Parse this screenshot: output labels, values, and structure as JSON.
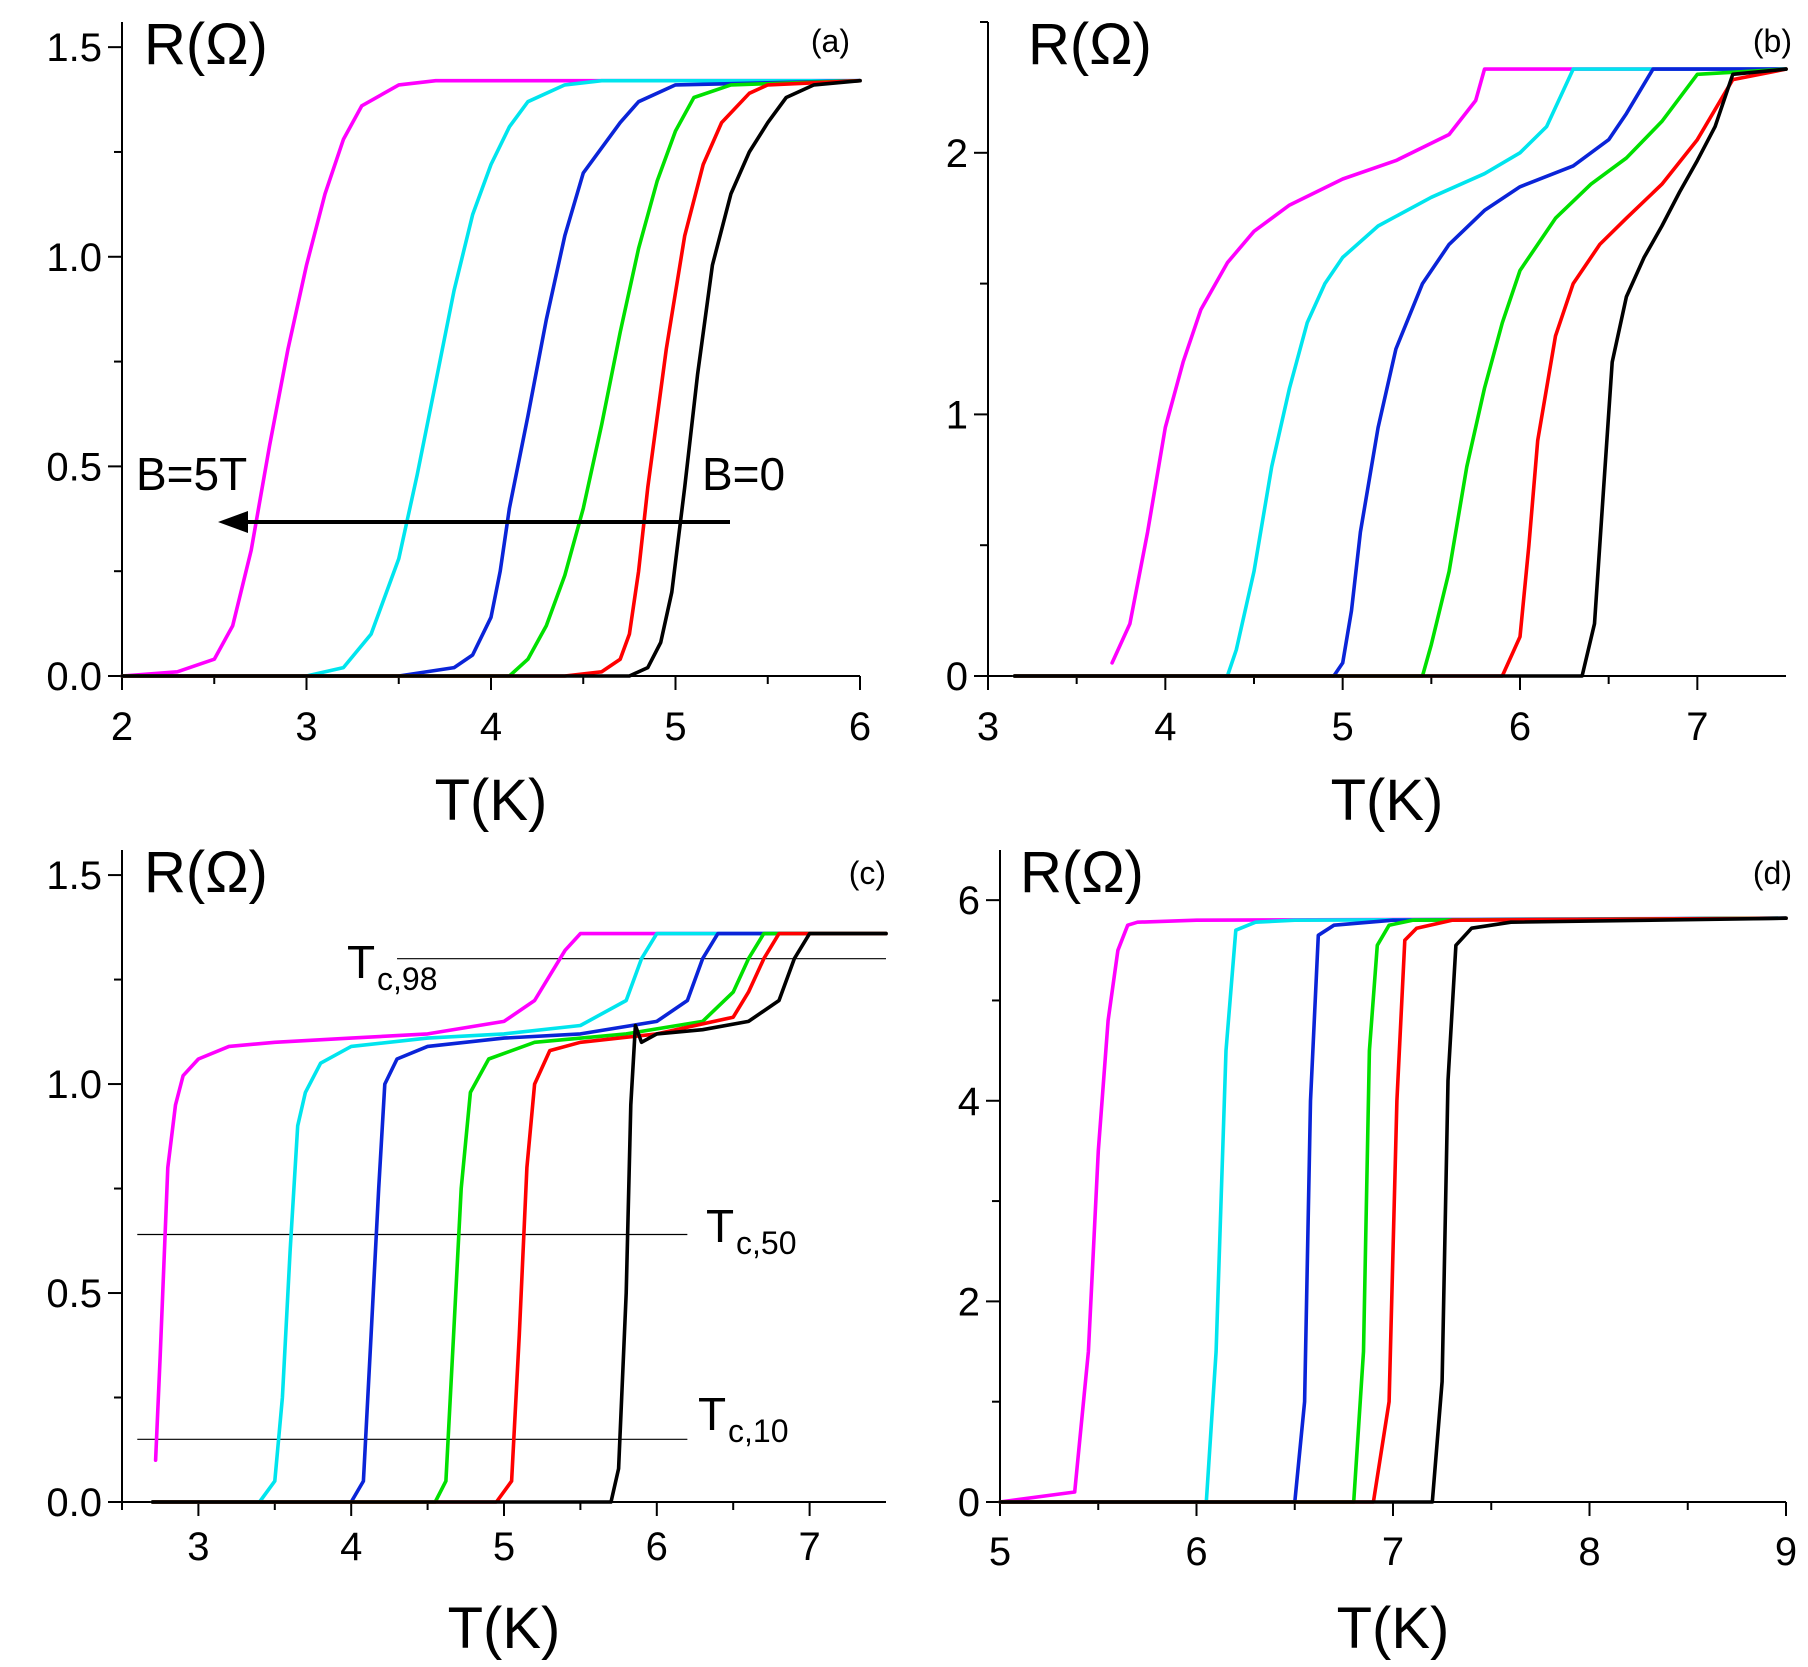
{
  "figure": {
    "series_colors": [
      "#ff00ff",
      "#00e5ee",
      "#0a24d8",
      "#00e000",
      "#ff0000",
      "#000000"
    ]
  },
  "chart_data": [
    {
      "id": "a",
      "type": "line",
      "panel_label": "(a)",
      "ylabel": "R(Ω)",
      "xlabel": "T(K)",
      "xlim": [
        2,
        6
      ],
      "ylim": [
        0,
        1.56
      ],
      "xticks": [
        2,
        3,
        4,
        5,
        6
      ],
      "xtick_labels": [
        "2",
        "3",
        "4",
        "5",
        "6"
      ],
      "yticks": [
        0,
        0.5,
        1.0,
        1.5
      ],
      "ytick_labels": [
        "0.0",
        "0.5",
        "1.0",
        "1.5"
      ],
      "annotations": {
        "left": "B=5T",
        "right": "B=0"
      },
      "series": [
        {
          "name": "magenta",
          "x": [
            2.0,
            2.3,
            2.5,
            2.6,
            2.7,
            2.8,
            2.9,
            3.0,
            3.1,
            3.2,
            3.3,
            3.5,
            3.7,
            4.0,
            4.5,
            6.0
          ],
          "y": [
            0,
            0.01,
            0.04,
            0.12,
            0.3,
            0.55,
            0.78,
            0.98,
            1.15,
            1.28,
            1.36,
            1.41,
            1.42,
            1.42,
            1.42,
            1.42
          ]
        },
        {
          "name": "cyan",
          "x": [
            2.0,
            3.0,
            3.2,
            3.35,
            3.5,
            3.6,
            3.7,
            3.8,
            3.9,
            4.0,
            4.1,
            4.2,
            4.4,
            4.6,
            6.0
          ],
          "y": [
            0,
            0,
            0.02,
            0.1,
            0.28,
            0.48,
            0.7,
            0.92,
            1.1,
            1.22,
            1.31,
            1.37,
            1.41,
            1.42,
            1.42
          ]
        },
        {
          "name": "blue",
          "x": [
            2.0,
            3.5,
            3.8,
            3.9,
            4.0,
            4.05,
            4.1,
            4.2,
            4.3,
            4.4,
            4.5,
            4.7,
            4.8,
            5.0,
            6.0
          ],
          "y": [
            0,
            0,
            0.02,
            0.05,
            0.14,
            0.25,
            0.4,
            0.62,
            0.85,
            1.05,
            1.2,
            1.32,
            1.37,
            1.41,
            1.42
          ]
        },
        {
          "name": "green",
          "x": [
            2.0,
            4.1,
            4.2,
            4.3,
            4.4,
            4.5,
            4.6,
            4.7,
            4.8,
            4.9,
            5.0,
            5.1,
            5.3,
            6.0
          ],
          "y": [
            0,
            0,
            0.04,
            0.12,
            0.24,
            0.4,
            0.6,
            0.82,
            1.02,
            1.18,
            1.3,
            1.38,
            1.41,
            1.42
          ]
        },
        {
          "name": "red",
          "x": [
            2.0,
            4.4,
            4.6,
            4.7,
            4.75,
            4.8,
            4.85,
            4.95,
            5.05,
            5.15,
            5.25,
            5.4,
            5.5,
            6.0
          ],
          "y": [
            0,
            0,
            0.01,
            0.04,
            0.1,
            0.25,
            0.45,
            0.78,
            1.05,
            1.22,
            1.32,
            1.39,
            1.41,
            1.42
          ]
        },
        {
          "name": "black",
          "x": [
            2.0,
            4.75,
            4.85,
            4.92,
            4.98,
            5.05,
            5.12,
            5.2,
            5.3,
            5.4,
            5.5,
            5.6,
            5.75,
            6.0
          ],
          "y": [
            0,
            0,
            0.02,
            0.08,
            0.2,
            0.45,
            0.72,
            0.98,
            1.15,
            1.25,
            1.32,
            1.38,
            1.41,
            1.42
          ]
        }
      ]
    },
    {
      "id": "b",
      "type": "line",
      "panel_label": "(b)",
      "ylabel": "R(Ω)",
      "xlabel": "T(K)",
      "xlim": [
        3,
        7.5
      ],
      "ylim": [
        0,
        2.5
      ],
      "xticks": [
        3,
        4,
        5,
        6,
        7
      ],
      "xtick_labels": [
        "3",
        "4",
        "5",
        "6",
        "7"
      ],
      "yticks": [
        0,
        1,
        2
      ],
      "ytick_labels": [
        "0",
        "1",
        "2"
      ],
      "series": [
        {
          "name": "magenta",
          "x": [
            3.7,
            3.8,
            3.9,
            4.0,
            4.1,
            4.2,
            4.35,
            4.5,
            4.7,
            5.0,
            5.3,
            5.6,
            5.75,
            5.8,
            6.0,
            7.5
          ],
          "y": [
            0.05,
            0.2,
            0.55,
            0.95,
            1.2,
            1.4,
            1.58,
            1.7,
            1.8,
            1.9,
            1.97,
            2.07,
            2.2,
            2.32,
            2.32,
            2.32
          ]
        },
        {
          "name": "cyan",
          "x": [
            3.15,
            4.35,
            4.4,
            4.5,
            4.6,
            4.7,
            4.8,
            4.9,
            5.0,
            5.2,
            5.5,
            5.8,
            6.0,
            6.15,
            6.3,
            7.5
          ],
          "y": [
            0,
            0,
            0.1,
            0.4,
            0.8,
            1.1,
            1.35,
            1.5,
            1.6,
            1.72,
            1.83,
            1.92,
            2.0,
            2.1,
            2.32,
            2.32
          ]
        },
        {
          "name": "blue",
          "x": [
            3.15,
            4.95,
            5.0,
            5.05,
            5.1,
            5.2,
            5.3,
            5.45,
            5.6,
            5.8,
            6.0,
            6.3,
            6.5,
            6.6,
            6.75,
            7.5
          ],
          "y": [
            0,
            0,
            0.05,
            0.25,
            0.55,
            0.95,
            1.25,
            1.5,
            1.65,
            1.78,
            1.87,
            1.95,
            2.05,
            2.15,
            2.32,
            2.32
          ]
        },
        {
          "name": "green",
          "x": [
            3.15,
            5.45,
            5.5,
            5.6,
            5.7,
            5.8,
            5.9,
            6.0,
            6.2,
            6.4,
            6.6,
            6.8,
            7.0,
            7.5
          ],
          "y": [
            0,
            0,
            0.12,
            0.4,
            0.8,
            1.1,
            1.35,
            1.55,
            1.75,
            1.88,
            1.98,
            2.12,
            2.3,
            2.32
          ]
        },
        {
          "name": "red",
          "x": [
            3.15,
            5.9,
            6.0,
            6.05,
            6.1,
            6.2,
            6.3,
            6.45,
            6.6,
            6.8,
            7.0,
            7.2,
            7.5
          ],
          "y": [
            0,
            0,
            0.15,
            0.5,
            0.9,
            1.3,
            1.5,
            1.65,
            1.75,
            1.88,
            2.05,
            2.28,
            2.32
          ]
        },
        {
          "name": "black",
          "x": [
            3.15,
            6.35,
            6.42,
            6.47,
            6.52,
            6.6,
            6.7,
            6.8,
            6.9,
            7.0,
            7.1,
            7.2,
            7.5
          ],
          "y": [
            0,
            0,
            0.2,
            0.7,
            1.2,
            1.45,
            1.6,
            1.72,
            1.85,
            1.97,
            2.1,
            2.3,
            2.32
          ]
        }
      ]
    },
    {
      "id": "c",
      "type": "line",
      "panel_label": "(c)",
      "ylabel": "R(Ω)",
      "xlabel": "T(K)",
      "xlim": [
        2.5,
        7.5
      ],
      "ylim": [
        0,
        1.56
      ],
      "xticks": [
        3,
        4,
        5,
        6,
        7
      ],
      "xtick_labels": [
        "3",
        "4",
        "5",
        "6",
        "7"
      ],
      "yticks": [
        0,
        0.5,
        1.0,
        1.5
      ],
      "ytick_labels": [
        "0.0",
        "0.5",
        "1.0",
        "1.5"
      ],
      "reference_lines": [
        {
          "label_main": "T",
          "label_sub": "c,98",
          "y": 1.3,
          "x_from": 4.3,
          "x_to": 7.5
        },
        {
          "label_main": "T",
          "label_sub": "c,50",
          "y": 0.64,
          "x_from": 2.6,
          "x_to": 6.2
        },
        {
          "label_main": "T",
          "label_sub": "c,10",
          "y": 0.15,
          "x_from": 2.6,
          "x_to": 6.2
        }
      ],
      "series": [
        {
          "name": "magenta",
          "x": [
            2.72,
            2.75,
            2.8,
            2.85,
            2.9,
            3.0,
            3.2,
            3.5,
            4.0,
            4.5,
            5.0,
            5.2,
            5.3,
            5.4,
            5.5,
            7.5
          ],
          "y": [
            0.1,
            0.35,
            0.8,
            0.95,
            1.02,
            1.06,
            1.09,
            1.1,
            1.11,
            1.12,
            1.15,
            1.2,
            1.26,
            1.32,
            1.36,
            1.36
          ]
        },
        {
          "name": "cyan",
          "x": [
            2.7,
            3.4,
            3.5,
            3.55,
            3.6,
            3.65,
            3.7,
            3.8,
            4.0,
            4.5,
            5.0,
            5.5,
            5.8,
            5.9,
            6.0,
            7.5
          ],
          "y": [
            0,
            0,
            0.05,
            0.25,
            0.6,
            0.9,
            0.98,
            1.05,
            1.09,
            1.11,
            1.12,
            1.14,
            1.2,
            1.3,
            1.36,
            1.36
          ]
        },
        {
          "name": "blue",
          "x": [
            2.7,
            4.0,
            4.08,
            4.13,
            4.18,
            4.22,
            4.3,
            4.5,
            5.0,
            5.5,
            6.0,
            6.2,
            6.3,
            6.4,
            7.5
          ],
          "y": [
            0,
            0,
            0.05,
            0.4,
            0.75,
            1.0,
            1.06,
            1.09,
            1.11,
            1.12,
            1.15,
            1.2,
            1.3,
            1.36,
            1.36
          ]
        },
        {
          "name": "green",
          "x": [
            2.7,
            4.55,
            4.62,
            4.67,
            4.72,
            4.78,
            4.9,
            5.2,
            5.8,
            6.3,
            6.5,
            6.6,
            6.7,
            7.5
          ],
          "y": [
            0,
            0,
            0.05,
            0.4,
            0.75,
            0.98,
            1.06,
            1.1,
            1.12,
            1.15,
            1.22,
            1.3,
            1.36,
            1.36
          ]
        },
        {
          "name": "red",
          "x": [
            2.7,
            4.95,
            5.05,
            5.1,
            5.15,
            5.2,
            5.3,
            5.5,
            6.0,
            6.5,
            6.6,
            6.7,
            6.8,
            7.5
          ],
          "y": [
            0,
            0,
            0.05,
            0.4,
            0.8,
            1.0,
            1.08,
            1.1,
            1.12,
            1.16,
            1.22,
            1.3,
            1.36,
            1.36
          ]
        },
        {
          "name": "black",
          "x": [
            2.7,
            5.7,
            5.75,
            5.8,
            5.83,
            5.86,
            5.9,
            6.0,
            6.3,
            6.6,
            6.8,
            6.9,
            7.0,
            7.5
          ],
          "y": [
            0,
            0,
            0.08,
            0.5,
            0.95,
            1.14,
            1.1,
            1.12,
            1.13,
            1.15,
            1.2,
            1.3,
            1.36,
            1.36
          ]
        }
      ]
    },
    {
      "id": "d",
      "type": "line",
      "panel_label": "(d)",
      "ylabel": "R(Ω)",
      "xlabel": "T(K)",
      "xlim": [
        5,
        9
      ],
      "ylim": [
        0,
        6.5
      ],
      "xticks": [
        5,
        6,
        7,
        8,
        9
      ],
      "xtick_labels": [
        "5",
        "6",
        "7",
        "8",
        "9"
      ],
      "yticks": [
        0,
        2,
        4,
        6
      ],
      "ytick_labels": [
        "0",
        "2",
        "4",
        "6"
      ],
      "series": [
        {
          "name": "magenta",
          "x": [
            5.0,
            5.38,
            5.45,
            5.5,
            5.55,
            5.6,
            5.65,
            5.7,
            6.0,
            9.0
          ],
          "y": [
            0,
            0.1,
            1.5,
            3.5,
            4.8,
            5.5,
            5.75,
            5.78,
            5.8,
            5.82
          ]
        },
        {
          "name": "cyan",
          "x": [
            5.0,
            6.05,
            6.1,
            6.15,
            6.2,
            6.3,
            6.5,
            9.0
          ],
          "y": [
            0,
            0,
            1.5,
            4.5,
            5.7,
            5.78,
            5.8,
            5.82
          ]
        },
        {
          "name": "blue",
          "x": [
            5.0,
            6.5,
            6.55,
            6.58,
            6.62,
            6.7,
            7.0,
            9.0
          ],
          "y": [
            0,
            0,
            1.0,
            4.0,
            5.65,
            5.75,
            5.8,
            5.82
          ]
        },
        {
          "name": "green",
          "x": [
            5.0,
            6.8,
            6.85,
            6.88,
            6.92,
            6.98,
            7.1,
            9.0
          ],
          "y": [
            0,
            0,
            1.5,
            4.5,
            5.55,
            5.75,
            5.8,
            5.82
          ]
        },
        {
          "name": "red",
          "x": [
            5.0,
            6.9,
            6.98,
            7.02,
            7.06,
            7.12,
            7.3,
            9.0
          ],
          "y": [
            0,
            0,
            1.0,
            4.0,
            5.6,
            5.72,
            5.8,
            5.82
          ]
        },
        {
          "name": "black",
          "x": [
            5.0,
            7.2,
            7.25,
            7.28,
            7.32,
            7.4,
            7.6,
            9.0
          ],
          "y": [
            0,
            0,
            1.2,
            4.2,
            5.55,
            5.72,
            5.78,
            5.82
          ]
        }
      ]
    }
  ]
}
